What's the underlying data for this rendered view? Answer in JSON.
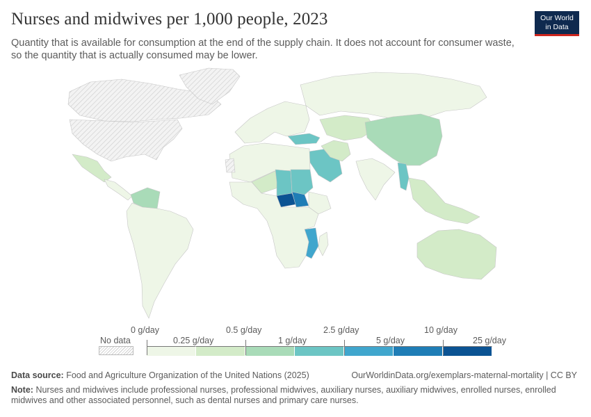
{
  "header": {
    "title": "Nurses and midwives per 1,000 people, 2023",
    "subtitle": "Quantity that is available for consumption at the end of the supply chain. It does not account for consumer waste, so the quantity that is actually consumed may be lower."
  },
  "logo": {
    "line1": "Our World",
    "line2": "in Data"
  },
  "colors": {
    "no_data": "#e6e6e6",
    "border": "#c6c6c6",
    "bins": [
      "#eef6e7",
      "#d3ebc8",
      "#a9dbb8",
      "#6cc5c4",
      "#40a6cd",
      "#1f7db6",
      "#0b5393"
    ]
  },
  "legend": {
    "no_data_label": "No data",
    "edge_labels": [
      "0 g/day",
      "0.5 g/day",
      "2.5 g/day",
      "10 g/day"
    ],
    "mid_labels": [
      "0.25 g/day",
      "1 g/day",
      "5 g/day",
      "25 g/day"
    ]
  },
  "footer": {
    "source_label": "Data source:",
    "source_text": "Food and Agriculture Organization of the United Nations (2025)",
    "url": "OurWorldinData.org/exemplars-maternal-mortality | CC BY",
    "note_label": "Note:",
    "note_text": "Nurses and midwives include professional nurses, professional midwives, auxiliary nurses, auxiliary midwives, enrolled nurses, enrolled midwives and other associated personnel, such as dental nurses and primary care nurses."
  },
  "chart_data": {
    "type": "choropleth",
    "title": "Nurses and midwives per 1,000 people, 2023",
    "bins": [
      "0 g/day",
      "0.25 g/day",
      "0.5 g/day",
      "1 g/day",
      "2.5 g/day",
      "5 g/day",
      "10 g/day",
      "25 g/day"
    ],
    "regions": [
      {
        "name": "Canada",
        "bin": -1
      },
      {
        "name": "United States",
        "bin": -1
      },
      {
        "name": "Greenland",
        "bin": -1
      },
      {
        "name": "Mexico",
        "bin": 1
      },
      {
        "name": "Central America",
        "bin": 0
      },
      {
        "name": "Venezuela",
        "bin": 2
      },
      {
        "name": "South America",
        "bin": 0
      },
      {
        "name": "Europe",
        "bin": 0
      },
      {
        "name": "Russia",
        "bin": 0
      },
      {
        "name": "Turkey",
        "bin": 3
      },
      {
        "name": "Saudi Arabia",
        "bin": 3
      },
      {
        "name": "Iran",
        "bin": 1
      },
      {
        "name": "Central Asia",
        "bin": 1
      },
      {
        "name": "China",
        "bin": 2
      },
      {
        "name": "India",
        "bin": 0
      },
      {
        "name": "Myanmar",
        "bin": 3
      },
      {
        "name": "Southeast Asia",
        "bin": 1
      },
      {
        "name": "Australia",
        "bin": 1
      },
      {
        "name": "North Africa",
        "bin": 0
      },
      {
        "name": "Niger",
        "bin": 1
      },
      {
        "name": "Chad",
        "bin": 3
      },
      {
        "name": "Sudan",
        "bin": 3
      },
      {
        "name": "Central African Republic",
        "bin": 6
      },
      {
        "name": "South Sudan",
        "bin": 5
      },
      {
        "name": "Ethiopia",
        "bin": 0
      },
      {
        "name": "Mozambique",
        "bin": 4
      },
      {
        "name": "Madagascar",
        "bin": 0
      },
      {
        "name": "Southern Africa",
        "bin": 0
      },
      {
        "name": "Western Sahara",
        "bin": -1
      }
    ]
  }
}
